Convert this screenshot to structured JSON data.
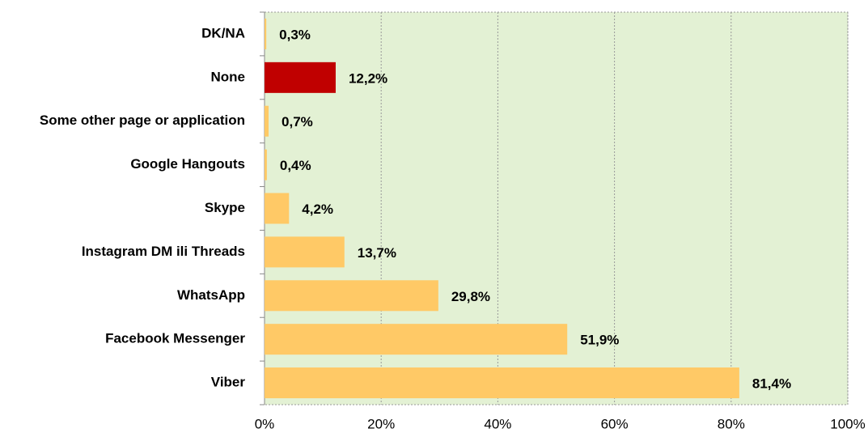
{
  "chart_data": {
    "type": "bar",
    "orientation": "horizontal",
    "categories": [
      "DK/NA",
      "None",
      "Some other page or application",
      "Google Hangouts",
      "Skype",
      "Instagram DM ili Threads",
      "WhatsApp",
      "Facebook Messenger",
      "Viber"
    ],
    "values": [
      0.3,
      12.2,
      0.7,
      0.4,
      4.2,
      13.7,
      29.8,
      51.9,
      81.4
    ],
    "value_labels": [
      "0,3%",
      "12,2%",
      "0,7%",
      "0,4%",
      "4,2%",
      "13,7%",
      "29,8%",
      "51,9%",
      "81,4%"
    ],
    "colors": [
      "#ffc966",
      "#c00000",
      "#ffc966",
      "#ffc966",
      "#ffc966",
      "#ffc966",
      "#ffc966",
      "#ffc966",
      "#ffc966"
    ],
    "xlim": [
      0,
      100
    ],
    "xticks": [
      {
        "value": 0,
        "label": "0%"
      },
      {
        "value": 20,
        "label": "20%"
      },
      {
        "value": 40,
        "label": "40%"
      },
      {
        "value": 60,
        "label": "60%"
      },
      {
        "value": 80,
        "label": "80%"
      },
      {
        "value": 100,
        "label": "100%"
      }
    ],
    "grid": true,
    "background": "#e3f1d4"
  }
}
